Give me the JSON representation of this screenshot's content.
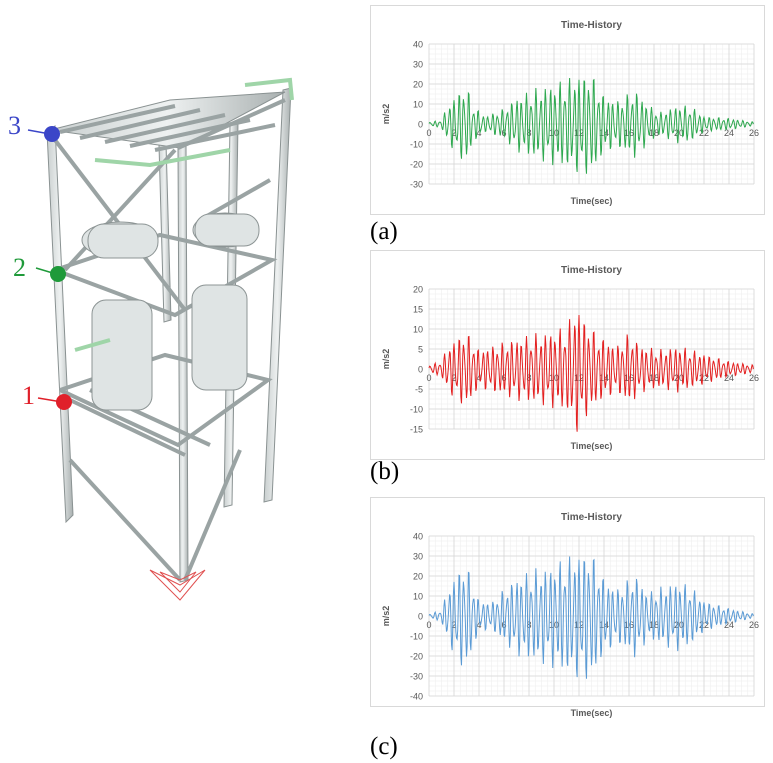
{
  "structure": {
    "nodes": [
      {
        "label": "3",
        "color": "#3b46c8"
      },
      {
        "label": "2",
        "color": "#1f9a3a"
      },
      {
        "label": "1",
        "color": "#e0202a"
      }
    ]
  },
  "chart_data": [
    {
      "type": "line",
      "title": "Time-History",
      "xlabel": "Time(sec)",
      "ylabel": "m/s2",
      "xlim": [
        0,
        26
      ],
      "ylim": [
        -30,
        40
      ],
      "xticks": [
        0,
        2,
        4,
        6,
        8,
        10,
        12,
        14,
        16,
        18,
        20,
        22,
        24,
        26
      ],
      "yticks": [
        -30,
        -20,
        -10,
        0,
        10,
        20,
        30,
        40
      ],
      "grid": true,
      "color": "#2ea84f",
      "panel_label": "(a)",
      "series": [
        {
          "envelope_t": [
            0,
            1,
            1.5,
            2.5,
            3,
            3.5,
            4.5,
            6,
            7,
            8.5,
            9.5,
            11,
            12,
            13,
            14,
            15,
            16.5,
            17.5,
            18.5,
            20,
            21,
            22,
            24,
            26
          ],
          "envelope_a": [
            1,
            2,
            10,
            18,
            21,
            10,
            4,
            8,
            14,
            18,
            20,
            23,
            26,
            27,
            15,
            12,
            18,
            10,
            6,
            10,
            9,
            4,
            3,
            1
          ]
        }
      ]
    },
    {
      "type": "line",
      "title": "Time-History",
      "xlabel": "Time(sec)",
      "ylabel": "m/s2",
      "xlim": [
        0,
        26
      ],
      "ylim": [
        -15,
        20
      ],
      "xticks": [
        0,
        2,
        4,
        6,
        8,
        10,
        12,
        14,
        16,
        18,
        20,
        22,
        24,
        26
      ],
      "yticks": [
        -15,
        -10,
        -5,
        0,
        5,
        10,
        15,
        20
      ],
      "grid": true,
      "color": "#e32020",
      "panel_label": "(b)",
      "series": [
        {
          "envelope_t": [
            0,
            1,
            1.5,
            2.5,
            3,
            4,
            5,
            6,
            7,
            8.5,
            9.5,
            11,
            11.8,
            12.5,
            13.5,
            15,
            16,
            17,
            18.5,
            20,
            21,
            22,
            24,
            26
          ],
          "envelope_a": [
            1,
            2,
            6,
            9,
            10,
            5,
            6,
            7,
            8,
            9,
            9.5,
            11,
            17,
            13,
            9,
            6,
            9.5,
            6,
            5,
            6,
            5,
            4,
            2,
            1
          ]
        }
      ]
    },
    {
      "type": "line",
      "title": "Time-History",
      "xlabel": "Time(sec)",
      "ylabel": "m/s2",
      "xlim": [
        0,
        26
      ],
      "ylim": [
        -40,
        40
      ],
      "xticks": [
        0,
        2,
        4,
        6,
        8,
        10,
        12,
        14,
        16,
        18,
        20,
        22,
        24,
        26
      ],
      "yticks": [
        -40,
        -30,
        -20,
        -10,
        0,
        10,
        20,
        30,
        40
      ],
      "grid": true,
      "color": "#5b9bd5",
      "panel_label": "(c)",
      "series": [
        {
          "envelope_t": [
            0,
            1,
            1.5,
            2.5,
            3,
            4,
            5,
            6,
            7,
            8.5,
            9.5,
            11,
            12,
            13,
            14,
            15,
            16.5,
            17.5,
            19,
            20,
            21,
            22,
            24,
            26
          ],
          "envelope_a": [
            1,
            3,
            14,
            26,
            28,
            8,
            7,
            14,
            20,
            24,
            25,
            30,
            33,
            34,
            20,
            14,
            22,
            12,
            16,
            18,
            15,
            8,
            4,
            1
          ]
        }
      ]
    }
  ]
}
